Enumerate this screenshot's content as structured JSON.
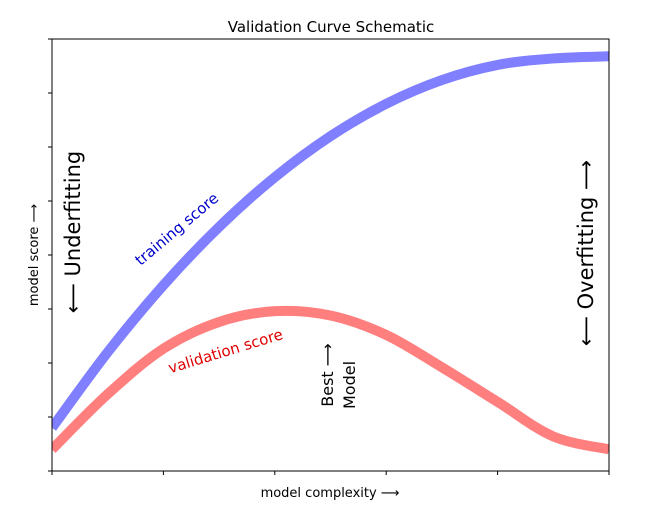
{
  "chart_data": {
    "type": "line",
    "title": "Validation Curve Schematic",
    "xlabel": "model complexity ⟶",
    "ylabel": "model score ⟶",
    "xlim": [
      0,
      1
    ],
    "ylim": [
      0,
      1
    ],
    "xticks": [
      0,
      0.2,
      0.4,
      0.6,
      0.8,
      1.0
    ],
    "yticks": [
      0,
      0.125,
      0.25,
      0.375,
      0.5,
      0.625,
      0.75,
      0.875,
      1.0
    ],
    "tick_labels_visible": false,
    "grid": false,
    "series": [
      {
        "name": "training score",
        "color": "#7f7fff",
        "x": [
          0,
          0.1,
          0.2,
          0.3,
          0.4,
          0.5,
          0.6,
          0.7,
          0.8,
          0.9,
          1.0
        ],
        "y": [
          0.1,
          0.275,
          0.43,
          0.565,
          0.68,
          0.775,
          0.85,
          0.905,
          0.94,
          0.955,
          0.96
        ]
      },
      {
        "name": "validation score",
        "color": "#ff7f7f",
        "x": [
          0,
          0.1,
          0.2,
          0.3,
          0.4,
          0.5,
          0.6,
          0.7,
          0.8,
          0.9,
          1.0
        ],
        "y": [
          0.05,
          0.178,
          0.283,
          0.345,
          0.37,
          0.36,
          0.315,
          0.24,
          0.16,
          0.08,
          0.05
        ]
      }
    ],
    "annotations": [
      {
        "id": "underfit",
        "text": "⟵ Underfitting"
      },
      {
        "id": "overfit",
        "text": "⟵ Overfitting ⟶"
      },
      {
        "id": "best1",
        "text": "Best ⟶"
      },
      {
        "id": "best2",
        "text": "Model"
      }
    ]
  }
}
